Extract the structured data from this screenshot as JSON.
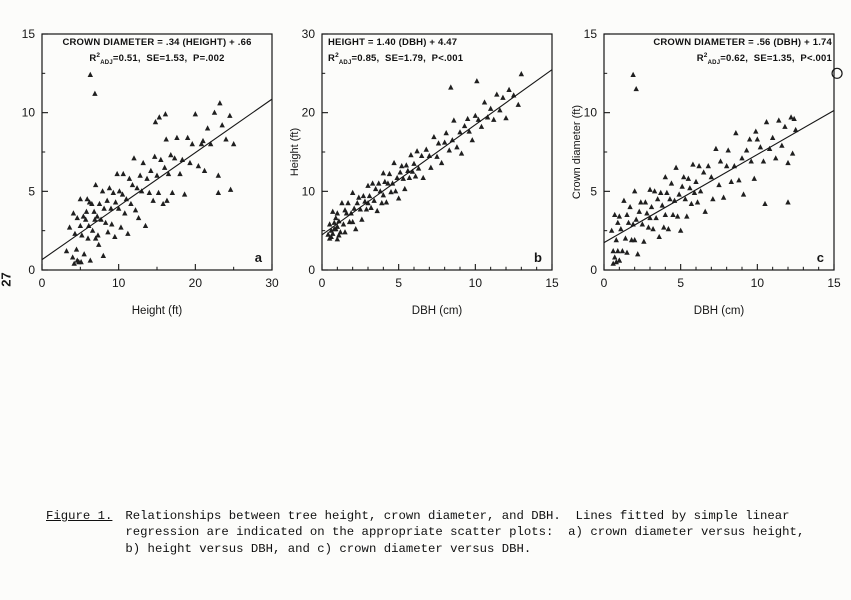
{
  "page": {
    "number": "27"
  },
  "figure": {
    "caption_label": "Figure 1.",
    "caption_text": "Relationships between tree height, crown diameter, and DBH.  Lines fitted by simple linear\nregression are indicated on the appropriate scatter plots:  a) crown diameter versus height,\nb) height versus DBH, and c) crown diameter versus DBH."
  },
  "colors": {
    "ink": "#161616",
    "marker": "#1f1f1f"
  },
  "chart_data": [
    {
      "type": "scatter",
      "panel": "a",
      "equation": "CROWN DIAMETER = .34 (HEIGHT) + .66",
      "stats": {
        "r_base": "R",
        "r_sup": "2",
        "r_sub": "ADJ",
        "rest": "=0.51,  SE=1.53,  P=.002"
      },
      "xlabel": "Height (ft)",
      "ylabel": "",
      "xlim": [
        0,
        30
      ],
      "ylim": [
        0,
        15
      ],
      "xticks": [
        0,
        10,
        20,
        30
      ],
      "yticks": [
        0,
        5,
        10,
        15
      ],
      "xminor": 5,
      "yminor": 2.5,
      "annot_align": "center",
      "regression": {
        "slope": 0.34,
        "intercept": 0.66,
        "x_start": 0,
        "x_end": 30
      },
      "points": [
        [
          3.2,
          1.2
        ],
        [
          3.6,
          2.7
        ],
        [
          4,
          0.8
        ],
        [
          4.1,
          3.6
        ],
        [
          4.3,
          2.3
        ],
        [
          4.5,
          1.3
        ],
        [
          4.6,
          3.3
        ],
        [
          4.8,
          0.5
        ],
        [
          5,
          2.8
        ],
        [
          5,
          4.5
        ],
        [
          5.2,
          2.2
        ],
        [
          5.4,
          3.4
        ],
        [
          5.5,
          1
        ],
        [
          5.7,
          3.2
        ],
        [
          5.9,
          4.5
        ],
        [
          6,
          2
        ],
        [
          6.1,
          2.8
        ],
        [
          6.3,
          0.6
        ],
        [
          6.5,
          4.2
        ],
        [
          6.6,
          2.5
        ],
        [
          6.8,
          3.7
        ],
        [
          7,
          5.4
        ],
        [
          7,
          2
        ],
        [
          7.2,
          3.4
        ],
        [
          7.4,
          1.6
        ],
        [
          7.5,
          4.2
        ],
        [
          7.7,
          3.2
        ],
        [
          7.9,
          5
        ],
        [
          8,
          0.9
        ],
        [
          8.1,
          3.9
        ],
        [
          8.3,
          3
        ],
        [
          8.5,
          4.4
        ],
        [
          8.6,
          2.4
        ],
        [
          8.8,
          5.2
        ],
        [
          9,
          3.9
        ],
        [
          9.1,
          2.9
        ],
        [
          9.3,
          4.9
        ],
        [
          9.5,
          2.1
        ],
        [
          9.6,
          4.3
        ],
        [
          9.8,
          6.1
        ],
        [
          10,
          3.9
        ],
        [
          10.1,
          5
        ],
        [
          10.3,
          2.7
        ],
        [
          10.5,
          4.8
        ],
        [
          10.6,
          6.1
        ],
        [
          10.8,
          3.6
        ],
        [
          11,
          4.5
        ],
        [
          11.2,
          2.3
        ],
        [
          11.4,
          5.8
        ],
        [
          11.6,
          4.2
        ],
        [
          11.8,
          5.4
        ],
        [
          12,
          7.1
        ],
        [
          12.2,
          3.8
        ],
        [
          12.4,
          5.2
        ],
        [
          12.6,
          3.3
        ],
        [
          12.8,
          6
        ],
        [
          13,
          5
        ],
        [
          13.2,
          6.8
        ],
        [
          13.5,
          2.8
        ],
        [
          13.7,
          5.8
        ],
        [
          14,
          4.9
        ],
        [
          14.2,
          6.3
        ],
        [
          14.5,
          4.4
        ],
        [
          14.7,
          7.2
        ],
        [
          15,
          6
        ],
        [
          15.2,
          4.9
        ],
        [
          15.5,
          7
        ],
        [
          15.8,
          4.2
        ],
        [
          16,
          6.5
        ],
        [
          16.2,
          8.3
        ],
        [
          16.5,
          6.1
        ],
        [
          16.8,
          7.3
        ],
        [
          17,
          4.9
        ],
        [
          17.3,
          7.1
        ],
        [
          17.6,
          8.4
        ],
        [
          18,
          6.1
        ],
        [
          18.3,
          7
        ],
        [
          18.6,
          4.8
        ],
        [
          19,
          8.4
        ],
        [
          19.3,
          6.8
        ],
        [
          19.6,
          8
        ],
        [
          20,
          9.9
        ],
        [
          20.4,
          6.6
        ],
        [
          20.8,
          8
        ],
        [
          21.2,
          6.3
        ],
        [
          21.6,
          9
        ],
        [
          22,
          8
        ],
        [
          22.5,
          10
        ],
        [
          23,
          6
        ],
        [
          23.5,
          9.2
        ],
        [
          24,
          8.3
        ],
        [
          24.5,
          9.8
        ],
        [
          25,
          8
        ],
        [
          6.2,
          4.3
        ],
        [
          6.9,
          3.2
        ],
        [
          7.3,
          2.2
        ],
        [
          5.8,
          3.7
        ],
        [
          16.3,
          4.4
        ],
        [
          21,
          8.2
        ],
        [
          23.2,
          10.6
        ],
        [
          6.3,
          12.4
        ],
        [
          6.9,
          11.2
        ],
        [
          23,
          4.9
        ],
        [
          24.6,
          5.1
        ],
        [
          4.2,
          0.4
        ],
        [
          4.6,
          0.6
        ],
        [
          5.1,
          0.5
        ],
        [
          15.3,
          9.7
        ],
        [
          16.1,
          9.9
        ],
        [
          14.8,
          9.4
        ]
      ]
    },
    {
      "type": "scatter",
      "panel": "b",
      "equation": "HEIGHT = 1.40 (DBH) + 4.47",
      "stats": {
        "r_base": "R",
        "r_sup": "2",
        "r_sub": "ADJ",
        "rest": "=0.85,  SE=1.79,  P<.001"
      },
      "xlabel": "DBH (cm)",
      "ylabel": "Height (ft)",
      "xlim": [
        0,
        15
      ],
      "ylim": [
        0,
        30
      ],
      "xticks": [
        0,
        5,
        10,
        15
      ],
      "yticks": [
        0,
        10,
        20,
        30
      ],
      "xminor": 1,
      "yminor": 5,
      "annot_align": "left",
      "regression": {
        "slope": 1.4,
        "intercept": 4.47,
        "x_start": 0,
        "x_end": 15
      },
      "points": [
        [
          0.5,
          5.8
        ],
        [
          0.6,
          4.2
        ],
        [
          0.7,
          7.4
        ],
        [
          0.8,
          5.2
        ],
        [
          0.9,
          6.6
        ],
        [
          1,
          3.9
        ],
        [
          1,
          7.2
        ],
        [
          1.1,
          6.2
        ],
        [
          1.2,
          4.8
        ],
        [
          1.3,
          8.5
        ],
        [
          1.4,
          5.8
        ],
        [
          1.5,
          7.6
        ],
        [
          1.5,
          4.8
        ],
        [
          1.6,
          7.2
        ],
        [
          1.7,
          8.5
        ],
        [
          1.8,
          6.1
        ],
        [
          1.9,
          7.2
        ],
        [
          2,
          9.8
        ],
        [
          2,
          6.1
        ],
        [
          2.1,
          7.8
        ],
        [
          2.2,
          5.2
        ],
        [
          2.3,
          8.5
        ],
        [
          2.4,
          9.2
        ],
        [
          2.5,
          7.7
        ],
        [
          2.6,
          6.4
        ],
        [
          2.7,
          9.4
        ],
        [
          2.8,
          8.7
        ],
        [
          2.9,
          7.7
        ],
        [
          3,
          10.7
        ],
        [
          3,
          8.5
        ],
        [
          3.1,
          9.4
        ],
        [
          3.2,
          7.9
        ],
        [
          3.3,
          11
        ],
        [
          3.4,
          8.8
        ],
        [
          3.5,
          10.3
        ],
        [
          3.6,
          7.5
        ],
        [
          3.7,
          11
        ],
        [
          3.8,
          10
        ],
        [
          3.9,
          8.5
        ],
        [
          4,
          12.3
        ],
        [
          4,
          9.5
        ],
        [
          4.1,
          11.2
        ],
        [
          4.2,
          8.6
        ],
        [
          4.3,
          11
        ],
        [
          4.4,
          12.2
        ],
        [
          4.5,
          9.9
        ],
        [
          4.6,
          11
        ],
        [
          4.7,
          13.6
        ],
        [
          4.8,
          10
        ],
        [
          4.9,
          11.7
        ],
        [
          5,
          9.1
        ],
        [
          5.1,
          12.4
        ],
        [
          5.2,
          13.2
        ],
        [
          5.3,
          11.6
        ],
        [
          5.4,
          10.3
        ],
        [
          5.5,
          13.3
        ],
        [
          5.6,
          12.6
        ],
        [
          5.7,
          11.7
        ],
        [
          5.8,
          14.6
        ],
        [
          5.9,
          12.5
        ],
        [
          6,
          13.5
        ],
        [
          6.1,
          11.9
        ],
        [
          6.2,
          15.1
        ],
        [
          6.3,
          12.9
        ],
        [
          6.5,
          14.5
        ],
        [
          6.6,
          11.7
        ],
        [
          6.8,
          15.3
        ],
        [
          7,
          14.5
        ],
        [
          7.1,
          13
        ],
        [
          7.3,
          16.9
        ],
        [
          7.5,
          14.4
        ],
        [
          7.6,
          16.1
        ],
        [
          7.8,
          13.6
        ],
        [
          8,
          16.2
        ],
        [
          8.1,
          17.4
        ],
        [
          8.3,
          15.2
        ],
        [
          8.5,
          16.5
        ],
        [
          8.6,
          19
        ],
        [
          8.8,
          15.6
        ],
        [
          9,
          17.5
        ],
        [
          9.1,
          14.8
        ],
        [
          9.3,
          18.3
        ],
        [
          9.5,
          19.2
        ],
        [
          9.6,
          17.6
        ],
        [
          9.8,
          16.5
        ],
        [
          10,
          19.6
        ],
        [
          10.2,
          19.1
        ],
        [
          10.4,
          18.2
        ],
        [
          10.6,
          21.3
        ],
        [
          10.8,
          19.4
        ],
        [
          11,
          20.5
        ],
        [
          11.2,
          19.1
        ],
        [
          11.4,
          22.3
        ],
        [
          11.6,
          20.3
        ],
        [
          11.8,
          21.9
        ],
        [
          12,
          19.3
        ],
        [
          12.2,
          22.9
        ],
        [
          12.5,
          22.2
        ],
        [
          12.8,
          21
        ],
        [
          13,
          24.9
        ],
        [
          8.4,
          23.2
        ],
        [
          10.1,
          24
        ],
        [
          0.4,
          4.5
        ],
        [
          0.5,
          4
        ],
        [
          0.6,
          5
        ],
        [
          0.7,
          4.6
        ],
        [
          0.8,
          6
        ],
        [
          0.9,
          5.2
        ],
        [
          1,
          5.5
        ],
        [
          1.1,
          4.4
        ]
      ]
    },
    {
      "type": "scatter",
      "panel": "c",
      "equation": "CROWN DIAMETER = .56 (DBH) + 1.74",
      "stats": {
        "r_base": "R",
        "r_sup": "2",
        "r_sub": "ADJ",
        "rest": "=0.62,  SE=1.35,  P<.001"
      },
      "xlabel": "DBH (cm)",
      "ylabel": "Crown diameter (ft)",
      "xlim": [
        0,
        15
      ],
      "ylim": [
        0,
        15
      ],
      "xticks": [
        0,
        5,
        10,
        15
      ],
      "yticks": [
        0,
        5,
        10,
        15
      ],
      "xminor": 1,
      "yminor": 2.5,
      "annot_align": "right",
      "regression": {
        "slope": 0.56,
        "intercept": 1.74,
        "x_start": 0,
        "x_end": 15
      },
      "open_circle": [
        15.2,
        12.5
      ],
      "points": [
        [
          0.5,
          2.5
        ],
        [
          0.6,
          1.2
        ],
        [
          0.7,
          3.5
        ],
        [
          0.8,
          1.9
        ],
        [
          0.9,
          3
        ],
        [
          1,
          0.6
        ],
        [
          1,
          3.4
        ],
        [
          1.1,
          2.6
        ],
        [
          1.2,
          1.2
        ],
        [
          1.3,
          4.4
        ],
        [
          1.4,
          2
        ],
        [
          1.5,
          3.5
        ],
        [
          1.5,
          1.1
        ],
        [
          1.6,
          3
        ],
        [
          1.7,
          4
        ],
        [
          1.8,
          1.9
        ],
        [
          1.9,
          2.9
        ],
        [
          2,
          5
        ],
        [
          2,
          1.9
        ],
        [
          2.1,
          3.2
        ],
        [
          2.2,
          1
        ],
        [
          2.3,
          3.7
        ],
        [
          2.4,
          4.3
        ],
        [
          2.5,
          2.9
        ],
        [
          2.6,
          1.8
        ],
        [
          2.7,
          4.3
        ],
        [
          2.8,
          3.6
        ],
        [
          2.9,
          2.7
        ],
        [
          3,
          5.1
        ],
        [
          3,
          3.3
        ],
        [
          3.1,
          4
        ],
        [
          3.2,
          2.6
        ],
        [
          3.3,
          5
        ],
        [
          3.4,
          3.3
        ],
        [
          3.5,
          4.5
        ],
        [
          3.6,
          2.1
        ],
        [
          3.7,
          4.9
        ],
        [
          3.8,
          4.1
        ],
        [
          3.9,
          2.7
        ],
        [
          4,
          5.9
        ],
        [
          4,
          3.5
        ],
        [
          4.1,
          4.9
        ],
        [
          4.2,
          2.6
        ],
        [
          4.3,
          4.5
        ],
        [
          4.4,
          5.5
        ],
        [
          4.5,
          3.5
        ],
        [
          4.6,
          4.4
        ],
        [
          4.7,
          6.5
        ],
        [
          4.8,
          3.4
        ],
        [
          4.9,
          4.8
        ],
        [
          5,
          2.5
        ],
        [
          5.1,
          5.3
        ],
        [
          5.2,
          5.9
        ],
        [
          5.3,
          4.5
        ],
        [
          5.4,
          3.4
        ],
        [
          5.5,
          5.8
        ],
        [
          5.6,
          5.2
        ],
        [
          5.7,
          4.2
        ],
        [
          5.8,
          6.7
        ],
        [
          5.9,
          4.9
        ],
        [
          6,
          5.6
        ],
        [
          6.1,
          4.3
        ],
        [
          6.2,
          6.6
        ],
        [
          6.3,
          5
        ],
        [
          6.5,
          6.2
        ],
        [
          6.6,
          3.7
        ],
        [
          6.8,
          6.6
        ],
        [
          7,
          5.9
        ],
        [
          7.1,
          4.5
        ],
        [
          7.3,
          7.7
        ],
        [
          7.5,
          5.4
        ],
        [
          7.6,
          6.9
        ],
        [
          7.8,
          4.6
        ],
        [
          8,
          6.6
        ],
        [
          8.1,
          7.6
        ],
        [
          8.3,
          5.6
        ],
        [
          8.5,
          6.6
        ],
        [
          8.6,
          8.7
        ],
        [
          8.8,
          5.7
        ],
        [
          9,
          7.1
        ],
        [
          9.1,
          4.8
        ],
        [
          9.3,
          7.6
        ],
        [
          9.5,
          8.3
        ],
        [
          9.6,
          6.9
        ],
        [
          9.8,
          5.8
        ],
        [
          10,
          8.3
        ],
        [
          10.2,
          7.8
        ],
        [
          10.4,
          6.9
        ],
        [
          10.6,
          9.4
        ],
        [
          10.8,
          7.7
        ],
        [
          11,
          8.4
        ],
        [
          11.2,
          7.1
        ],
        [
          11.4,
          9.5
        ],
        [
          11.6,
          7.9
        ],
        [
          11.8,
          9.1
        ],
        [
          12,
          6.8
        ],
        [
          12.2,
          9.7
        ],
        [
          12.5,
          8.9
        ],
        [
          12.3,
          7.4
        ],
        [
          12.4,
          9.6
        ],
        [
          1.9,
          12.4
        ],
        [
          2.1,
          11.5
        ],
        [
          0.6,
          0.4
        ],
        [
          0.7,
          0.8
        ],
        [
          0.8,
          0.5
        ],
        [
          0.9,
          1.2
        ],
        [
          1,
          0.6
        ],
        [
          12,
          4.3
        ],
        [
          10.5,
          4.2
        ],
        [
          9.9,
          8.8
        ]
      ]
    }
  ]
}
